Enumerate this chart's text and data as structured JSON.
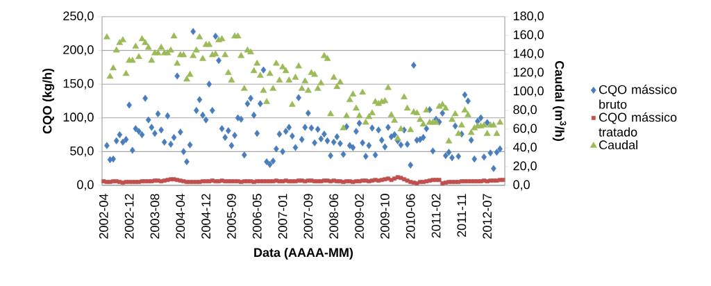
{
  "chart_data": {
    "type": "scatter",
    "xlabel": "Data (AAAA-MM)",
    "ylabel": "CQO (kg/h)",
    "y2label": "Caudal (m$^{3}$/h)",
    "categories": [
      "2002-04",
      null,
      null,
      null,
      null,
      null,
      null,
      null,
      "2002-12",
      null,
      null,
      null,
      null,
      null,
      null,
      null,
      "2003-08",
      null,
      null,
      null,
      null,
      null,
      null,
      null,
      "2004-04",
      null,
      null,
      null,
      null,
      null,
      null,
      null,
      "2004-12",
      null,
      null,
      null,
      null,
      null,
      null,
      null,
      "2005-09",
      null,
      null,
      null,
      null,
      null,
      null,
      null,
      "2006-05",
      null,
      null,
      null,
      null,
      null,
      null,
      null,
      "2007-01",
      null,
      null,
      null,
      null,
      null,
      null,
      null,
      "2007-09",
      null,
      null,
      null,
      null,
      null,
      null,
      null,
      "2008-06",
      null,
      null,
      null,
      null,
      null,
      null,
      null,
      "2009-02",
      null,
      null,
      null,
      null,
      null,
      null,
      null,
      "2009-10",
      null,
      null,
      null,
      null,
      null,
      null,
      null,
      "2010-06",
      null,
      null,
      null,
      null,
      null,
      null,
      null,
      "2011-02",
      null,
      null,
      null,
      null,
      null,
      null,
      null,
      "2011-11",
      null,
      null,
      null,
      null,
      null,
      null,
      null,
      "2012-07",
      null,
      null,
      null,
      null,
      null
    ],
    "ylim": [
      0,
      250
    ],
    "yticks": [
      {
        "value": 0,
        "label": "0,0"
      },
      {
        "value": 50,
        "label": "50,0"
      },
      {
        "value": 100,
        "label": "100,0"
      },
      {
        "value": 150,
        "label": "150,0"
      },
      {
        "value": 200,
        "label": "200,0"
      },
      {
        "value": 250,
        "label": "250,0"
      }
    ],
    "y2lim": [
      0,
      180
    ],
    "y2ticks": [
      {
        "value": 0,
        "label": "0,0"
      },
      {
        "value": 20,
        "label": "20,0"
      },
      {
        "value": 40,
        "label": "40,0"
      },
      {
        "value": 60,
        "label": "60,0"
      },
      {
        "value": 80,
        "label": "80,0"
      },
      {
        "value": 100,
        "label": "100,0"
      },
      {
        "value": 120,
        "label": "120,0"
      },
      {
        "value": 140,
        "label": "140,0"
      },
      {
        "value": 160,
        "label": "160,0"
      },
      {
        "value": 180,
        "label": "180,0"
      }
    ],
    "grid": "y",
    "legend": "right",
    "series": [
      {
        "name": "CQO mássico bruto",
        "color": "#4a7ebb",
        "marker": "diamond",
        "values": [
          null,
          59,
          38,
          39,
          66,
          75,
          64,
          68,
          119,
          52,
          84,
          80,
          75,
          129,
          97,
          86,
          77,
          106,
          82,
          64,
          103,
          61,
          71,
          162,
          79,
          50,
          35,
          60,
          228,
          111,
          127,
          104,
          97,
          150,
          111,
          221,
          185,
          84,
          71,
          81,
          59,
          74,
          100,
          98,
          45,
          121,
          129,
          104,
          77,
          121,
          171,
          35,
          31,
          36,
          54,
          76,
          50,
          80,
          86,
          73,
          56,
          130,
          68,
          86,
          107,
          85,
          63,
          83,
          69,
          76,
          66,
          44,
          64,
          72,
          62,
          46,
          87,
          59,
          56,
          80,
          92,
          63,
          43,
          59,
          85,
          45,
          82,
          67,
          57,
          86,
          72,
          75,
          66,
          60,
          82,
          61,
          30,
          178,
          67,
          68,
          71,
          84,
          112,
          51,
          98,
          94,
          107,
          44,
          49,
          41,
          88,
          43,
          76,
          134,
          125,
          67,
          39,
          95,
          100,
          42,
          93,
          48,
          25,
          49,
          54,
          null
        ]
      },
      {
        "name": "CQO mássico tratado",
        "color": "#c0504d",
        "marker": "square",
        "values": [
          6,
          5,
          5,
          6,
          6,
          5,
          4,
          5,
          5,
          5,
          5,
          5,
          6,
          6,
          6,
          6,
          7,
          7,
          6,
          7,
          8,
          9,
          9,
          8,
          7,
          6,
          5,
          5,
          5,
          5,
          5,
          6,
          6,
          6,
          7,
          6,
          6,
          7,
          6,
          6,
          6,
          6,
          6,
          5,
          6,
          6,
          6,
          5,
          6,
          6,
          6,
          6,
          6,
          6,
          7,
          6,
          6,
          7,
          6,
          6,
          6,
          7,
          7,
          6,
          7,
          7,
          6,
          6,
          6,
          7,
          7,
          6,
          7,
          6,
          6,
          5,
          6,
          6,
          5,
          6,
          6,
          7,
          7,
          6,
          7,
          8,
          7,
          8,
          9,
          10,
          8,
          10,
          12,
          11,
          9,
          7,
          5,
          4,
          3,
          5,
          5,
          6,
          7,
          8,
          8,
          8,
          3,
          4,
          5,
          5,
          5,
          5,
          6,
          6,
          6,
          6,
          6,
          6,
          6,
          7,
          6,
          7,
          7,
          7,
          8,
          8
        ]
      },
      {
        "name": "Caudal",
        "color": "#9bbb59",
        "marker": "triangle",
        "axis": "y2",
        "values": [
          null,
          158,
          116,
          125,
          144,
          152,
          155,
          119,
          133,
          133,
          148,
          137,
          156,
          152,
          147,
          133,
          141,
          141,
          147,
          141,
          141,
          144,
          159,
          130,
          139,
          139,
          113,
          118,
          138,
          144,
          158,
          135,
          150,
          150,
          139,
          140,
          155,
          156,
          139,
          120,
          112,
          159,
          159,
          138,
          103,
          144,
          142,
          122,
          130,
          117,
          101,
          89,
          119,
          103,
          130,
          112,
          126,
          122,
          112,
          86,
          115,
          127,
          103,
          111,
          101,
          120,
          118,
          103,
          109,
          138,
          135,
          76,
          115,
          105,
          110,
          61,
          74,
          91,
          97,
          82,
          74,
          99,
          67,
          73,
          77,
          89,
          87,
          89,
          90,
          104,
          75,
          69,
          50,
          60,
          94,
          82,
          59,
          78,
          77,
          70,
          65,
          80,
          67,
          67,
          67,
          84,
          86,
          82,
          47,
          70,
          76,
          55,
          64,
          80,
          75,
          56,
          61,
          63,
          63,
          64,
          55,
          64,
          64,
          55,
          67,
          null
        ]
      }
    ]
  }
}
